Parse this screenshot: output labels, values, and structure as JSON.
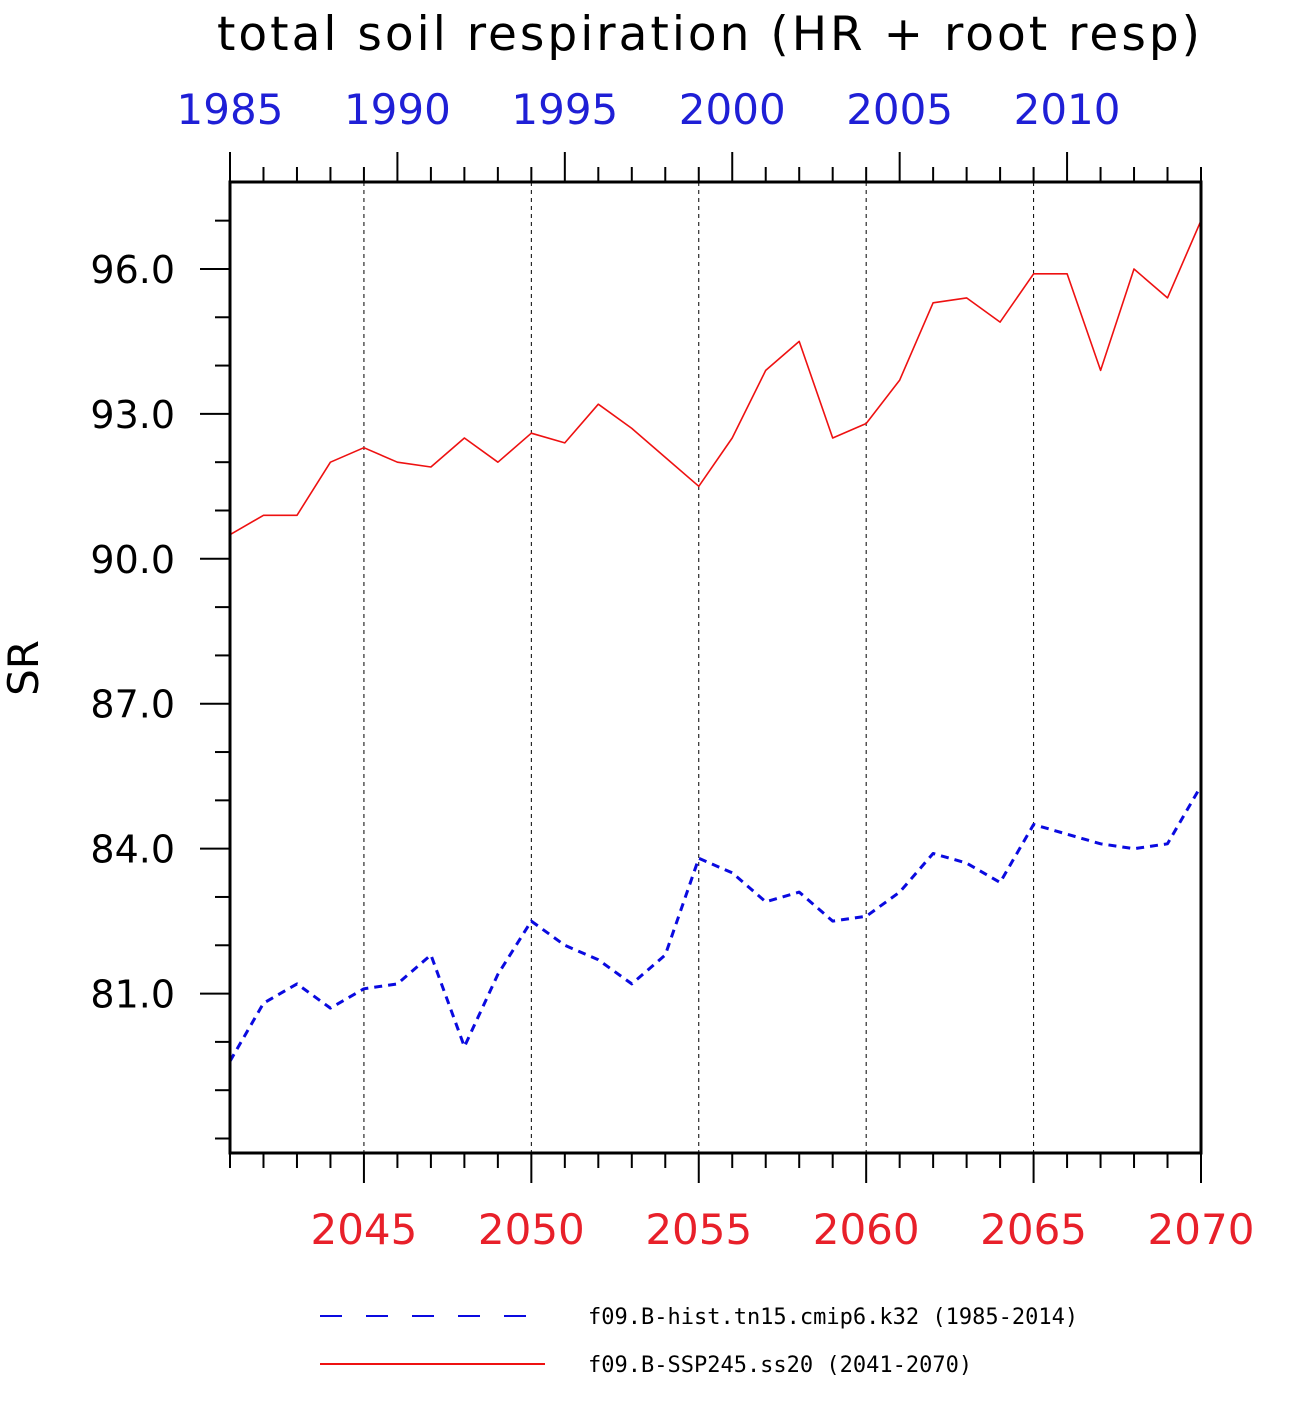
{
  "title": "total soil respiration (HR + root resp)",
  "colors": {
    "hist": "#0a0ae0",
    "ssp": "#ee1111",
    "axis": "#000000"
  },
  "chart_data": {
    "type": "line",
    "title": "total soil respiration (HR + root resp)",
    "ylabel": "SR",
    "xlabel": "",
    "ylim": [
      77.7,
      97.8
    ],
    "yticks": [
      81.0,
      84.0,
      87.0,
      90.0,
      93.0,
      96.0
    ],
    "ytick_labels": [
      "81.0",
      "84.0",
      "87.0",
      "90.0",
      "93.0",
      "96.0"
    ],
    "grid": "vertical dashed at major x ticks",
    "x_bottom": {
      "range": [
        2041,
        2070
      ],
      "ticks": [
        2045,
        2050,
        2055,
        2060,
        2065,
        2070
      ],
      "tick_labels": [
        "2045",
        "2050",
        "2055",
        "2060",
        "2065",
        "2070"
      ]
    },
    "x_top": {
      "range": [
        1985,
        2014
      ],
      "ticks": [
        1985,
        1990,
        1995,
        2000,
        2005,
        2010
      ],
      "tick_labels": [
        "1985",
        "1990",
        "1995",
        "2000",
        "2005",
        "2010"
      ]
    },
    "series": [
      {
        "name": "f09.B-hist.tn15.cmip6.k32 (1985-2014)",
        "axis": "top",
        "style": "dashed",
        "x": [
          1985,
          1986,
          1987,
          1988,
          1989,
          1990,
          1991,
          1992,
          1993,
          1994,
          1995,
          1996,
          1997,
          1998,
          1999,
          2000,
          2001,
          2002,
          2003,
          2004,
          2005,
          2006,
          2007,
          2008,
          2009,
          2010,
          2011,
          2012,
          2013,
          2014
        ],
        "values": [
          79.6,
          80.8,
          81.2,
          80.7,
          81.1,
          81.2,
          81.8,
          79.9,
          81.4,
          82.5,
          82.0,
          81.7,
          81.2,
          81.8,
          83.8,
          83.5,
          82.9,
          83.1,
          82.5,
          82.6,
          83.1,
          83.9,
          83.7,
          83.3,
          84.5,
          84.3,
          84.1,
          84.0,
          84.1,
          85.3
        ]
      },
      {
        "name": "f09.B-SSP245.ss20 (2041-2070)",
        "axis": "bottom",
        "style": "solid",
        "x": [
          2041,
          2042,
          2043,
          2044,
          2045,
          2046,
          2047,
          2048,
          2049,
          2050,
          2051,
          2052,
          2053,
          2054,
          2055,
          2056,
          2057,
          2058,
          2059,
          2060,
          2061,
          2062,
          2063,
          2064,
          2065,
          2066,
          2067,
          2068,
          2069,
          2070
        ],
        "values": [
          90.5,
          90.9,
          90.9,
          92.0,
          92.3,
          92.0,
          91.9,
          92.5,
          92.0,
          92.6,
          92.4,
          93.2,
          92.7,
          92.1,
          91.5,
          92.5,
          93.9,
          94.5,
          92.5,
          92.8,
          93.7,
          95.3,
          95.4,
          94.9,
          95.9,
          95.9,
          93.9,
          96.0,
          95.4,
          97.0
        ]
      }
    ],
    "legend": {
      "placement": "bottom",
      "entries": [
        "f09.B-hist.tn15.cmip6.k32 (1985-2014)",
        "f09.B-SSP245.ss20 (2041-2070)"
      ]
    }
  }
}
